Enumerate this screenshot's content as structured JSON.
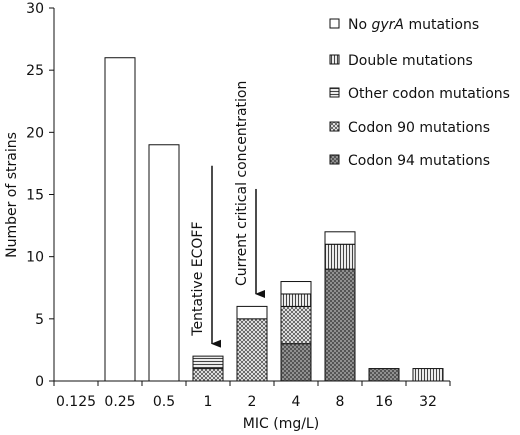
{
  "chart_data": {
    "type": "bar",
    "stacked": true,
    "xlabel": "MIC (mg/L)",
    "ylabel": "Number of strains",
    "ylim": [
      0,
      30
    ],
    "yticks": [
      0,
      5,
      10,
      15,
      20,
      25,
      30
    ],
    "categories": [
      "0.125",
      "0.25",
      "0.5",
      "1",
      "2",
      "4",
      "8",
      "16",
      "32"
    ],
    "series": [
      {
        "name": "Codon 94 mutations",
        "pattern": "dark-dots",
        "values": [
          0,
          0,
          0,
          0,
          0,
          3,
          9,
          1,
          0
        ]
      },
      {
        "name": "Codon 90 mutations",
        "pattern": "crosshatch",
        "values": [
          0,
          0,
          0,
          1,
          5,
          3,
          0,
          0,
          0
        ]
      },
      {
        "name": "Other codon mutations",
        "pattern": "horizontal-lines",
        "values": [
          0,
          0,
          0,
          1,
          0,
          0,
          0,
          0,
          0
        ]
      },
      {
        "name": "Double mutations",
        "pattern": "vertical-lines",
        "values": [
          0,
          0,
          0,
          0,
          0,
          1,
          2,
          0,
          1
        ]
      },
      {
        "name_parts": [
          "No ",
          "gyrA",
          " mutations"
        ],
        "pattern": "white",
        "values": [
          0,
          26,
          19,
          0,
          1,
          1,
          1,
          0,
          0
        ]
      }
    ],
    "legend_order": [
      "No gyrA mutations",
      "Double mutations",
      "Other codon mutations",
      "Codon 90 mutations",
      "Codon 94 mutations"
    ],
    "legend_position": "top-right",
    "grid": false,
    "annotations": [
      {
        "text": "Tentative ECOFF",
        "category": "1",
        "arrow_to": 3
      },
      {
        "text": "Current critical concentration",
        "category": "2",
        "arrow_to": 7
      }
    ]
  },
  "legend": {
    "no_gyra_prefix": "No ",
    "no_gyra_italic": "gyrA",
    "no_gyra_suffix": " mutations",
    "double": "Double mutations",
    "other": "Other codon mutations",
    "codon90": "Codon 90 mutations",
    "codon94": "Codon 94 mutations"
  }
}
